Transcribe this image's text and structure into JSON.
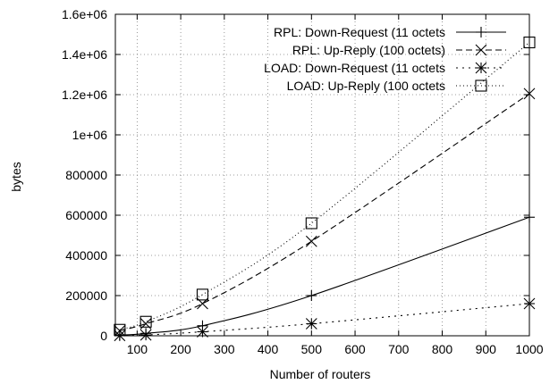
{
  "chart_data": {
    "type": "line",
    "title": "",
    "xlabel": "Number of routers",
    "ylabel": "bytes",
    "xlim": [
      50,
      1000
    ],
    "ylim": [
      0,
      1600000
    ],
    "grid": true,
    "legend_position": "top-right",
    "x_ticks": [
      100,
      200,
      300,
      400,
      500,
      600,
      700,
      800,
      900,
      1000
    ],
    "x_tick_labels": [
      "100",
      "200",
      "300",
      "400",
      "500",
      "600",
      "700",
      "800",
      "900",
      "1000"
    ],
    "y_ticks": [
      0,
      200000,
      400000,
      600000,
      800000,
      1000000,
      1200000,
      1400000,
      1600000
    ],
    "y_tick_labels": [
      "0",
      "200000",
      "400000",
      "600000",
      "800000",
      "1e+06",
      "1.2e+06",
      "1.4e+06",
      "1.6e+06"
    ],
    "series": [
      {
        "name": "RPL: Down-Request (11 octets",
        "line_style": "solid",
        "marker": "plus",
        "x": [
          60,
          120,
          250,
          500,
          1000
        ],
        "y": [
          3000,
          12000,
          50000,
          200000,
          590000
        ]
      },
      {
        "name": "RPL: Up-Reply (100 octets)",
        "line_style": "dashed",
        "marker": "cross",
        "x": [
          60,
          120,
          250,
          500,
          1000
        ],
        "y": [
          25000,
          60000,
          160000,
          470000,
          1205000
        ]
      },
      {
        "name": "LOAD: Down-Request (11 octets",
        "line_style": "dotted",
        "marker": "star",
        "x": [
          60,
          120,
          250,
          500,
          1000
        ],
        "y": [
          1000,
          4000,
          20000,
          60000,
          160000
        ]
      },
      {
        "name": "LOAD: Up-Reply (100 octets",
        "line_style": "fine-dotted",
        "marker": "square",
        "x": [
          60,
          120,
          250,
          500,
          1000
        ],
        "y": [
          30000,
          70000,
          205000,
          560000,
          1460000
        ]
      }
    ]
  }
}
